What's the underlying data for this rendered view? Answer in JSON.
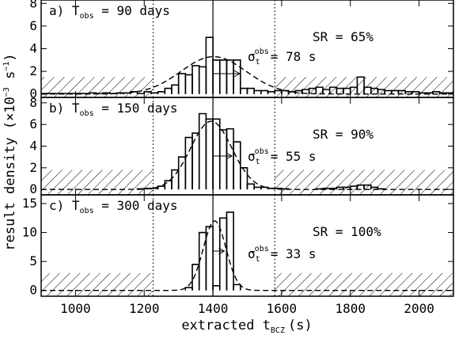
{
  "chart_data": {
    "type": "histogram",
    "xlabel": {
      "main": "extracted t",
      "sub": "BCZ",
      "unit": "(s)"
    },
    "ylabel": {
      "main": "result density (×10",
      "sup1": "−3",
      "mid": " s",
      "sup2": "−1",
      "end": ")"
    },
    "xlim": [
      900,
      2100
    ],
    "xticks": [
      1000,
      1200,
      1400,
      1600,
      1800,
      2000
    ],
    "xtick_labels": [
      "1000",
      "1200",
      "1400",
      "1600",
      "1800",
      "2000"
    ],
    "true_value": 1400,
    "dotted_lines": [
      1226,
      1580
    ],
    "hatched_regions": [
      [
        900,
        1226
      ],
      [
        1580,
        2100
      ]
    ],
    "panels": [
      {
        "label_prefix": "a) T",
        "label_sub": "obs",
        "label_value": " = 90 days",
        "sr_text": "SR = 65%",
        "sigma_symbol": "σ",
        "sigma_sub": "t",
        "sigma_sup": "obs",
        "sigma_value": "= 78 s",
        "sigma_width": 78,
        "ylim": [
          -0.3,
          8.3
        ],
        "yticks": [
          0,
          2,
          4,
          6,
          8
        ],
        "ytick_labels": [
          "0",
          "2",
          "4",
          "6",
          "8"
        ],
        "hatch_height": 1.5,
        "hist": {
          "bin_width": 20,
          "x": [
            900,
            920,
            940,
            960,
            980,
            1000,
            1020,
            1040,
            1060,
            1080,
            1100,
            1120,
            1140,
            1160,
            1180,
            1200,
            1220,
            1240,
            1260,
            1280,
            1300,
            1320,
            1340,
            1360,
            1380,
            1400,
            1420,
            1440,
            1460,
            1480,
            1500,
            1520,
            1540,
            1560,
            1580,
            1600,
            1620,
            1640,
            1660,
            1680,
            1700,
            1720,
            1740,
            1760,
            1780,
            1800,
            1820,
            1840,
            1860,
            1880,
            1900,
            1920,
            1940,
            1960,
            1980,
            2000,
            2020,
            2040,
            2060,
            2080
          ],
          "values": [
            0.05,
            0.05,
            0.05,
            0.05,
            0.05,
            0.05,
            0.05,
            0.1,
            0.05,
            0.1,
            0.05,
            0.1,
            0.1,
            0.2,
            0.05,
            0.2,
            0.1,
            0.2,
            0.5,
            0.8,
            1.8,
            1.7,
            2.5,
            2.4,
            5.0,
            3.0,
            3.0,
            3.0,
            3.0,
            0.5,
            0.5,
            0.3,
            0.3,
            0.2,
            0.3,
            0.3,
            0.2,
            0.3,
            0.4,
            0.5,
            0.6,
            0.4,
            0.6,
            0.5,
            0.5,
            0.6,
            1.5,
            0.6,
            0.5,
            0.4,
            0.3,
            0.3,
            0.3,
            0.2,
            0.2,
            0.1,
            0.1,
            0.2,
            0.1,
            0.1
          ]
        },
        "gauss": {
          "mean": 1402,
          "sigma": 95,
          "amplitude": 3.3
        }
      },
      {
        "label_prefix": "b) T",
        "label_sub": "obs",
        "label_value": " = 150 days",
        "sr_text": "SR = 90%",
        "sigma_symbol": "σ",
        "sigma_sub": "t",
        "sigma_sup": "obs",
        "sigma_value": "= 55 s",
        "sigma_width": 55,
        "ylim": [
          -0.5,
          8.5
        ],
        "yticks": [
          0,
          2,
          4,
          6,
          8
        ],
        "ytick_labels": [
          "0",
          "2",
          "4",
          "6",
          "8"
        ],
        "hatch_height": 1.8,
        "hist": {
          "bin_width": 20,
          "x": [
            1180,
            1200,
            1220,
            1240,
            1260,
            1280,
            1300,
            1320,
            1340,
            1360,
            1380,
            1400,
            1420,
            1440,
            1460,
            1480,
            1500,
            1520,
            1540,
            1560,
            1580,
            1600,
            1700,
            1720,
            1740,
            1760,
            1780,
            1800,
            1820,
            1840,
            1860,
            1880
          ],
          "values": [
            0.05,
            0.1,
            0.1,
            0.3,
            0.8,
            1.8,
            3.0,
            4.8,
            5.2,
            7.0,
            6.5,
            6.5,
            5.5,
            5.6,
            4.4,
            2.0,
            0.5,
            0.2,
            0.2,
            0.1,
            0.1,
            0.05,
            0.05,
            0.1,
            0.1,
            0.2,
            0.2,
            0.3,
            0.4,
            0.4,
            0.2,
            0.05
          ]
        },
        "gauss": {
          "mean": 1395,
          "sigma": 60,
          "amplitude": 6.3
        }
      },
      {
        "label_prefix": "c) T",
        "label_sub": "obs",
        "label_value": " = 300 days",
        "sr_text": "SR = 100%",
        "sigma_symbol": "σ",
        "sigma_sub": "t",
        "sigma_sup": "obs",
        "sigma_value": "= 33 s",
        "sigma_width": 33,
        "ylim": [
          -1,
          16.5
        ],
        "yticks": [
          0,
          5,
          10,
          15
        ],
        "ytick_labels": [
          "0",
          "5",
          "10",
          "15"
        ],
        "hatch_height": 3,
        "hist": {
          "bin_width": 20,
          "x": [
            1320,
            1340,
            1360,
            1380,
            1400,
            1420,
            1440,
            1460
          ],
          "values": [
            0.5,
            4.5,
            10.0,
            11.0,
            0.8,
            12.5,
            13.5,
            1.0
          ]
        },
        "gauss": {
          "mean": 1405,
          "sigma": 33,
          "amplitude": 12.0
        }
      }
    ]
  }
}
